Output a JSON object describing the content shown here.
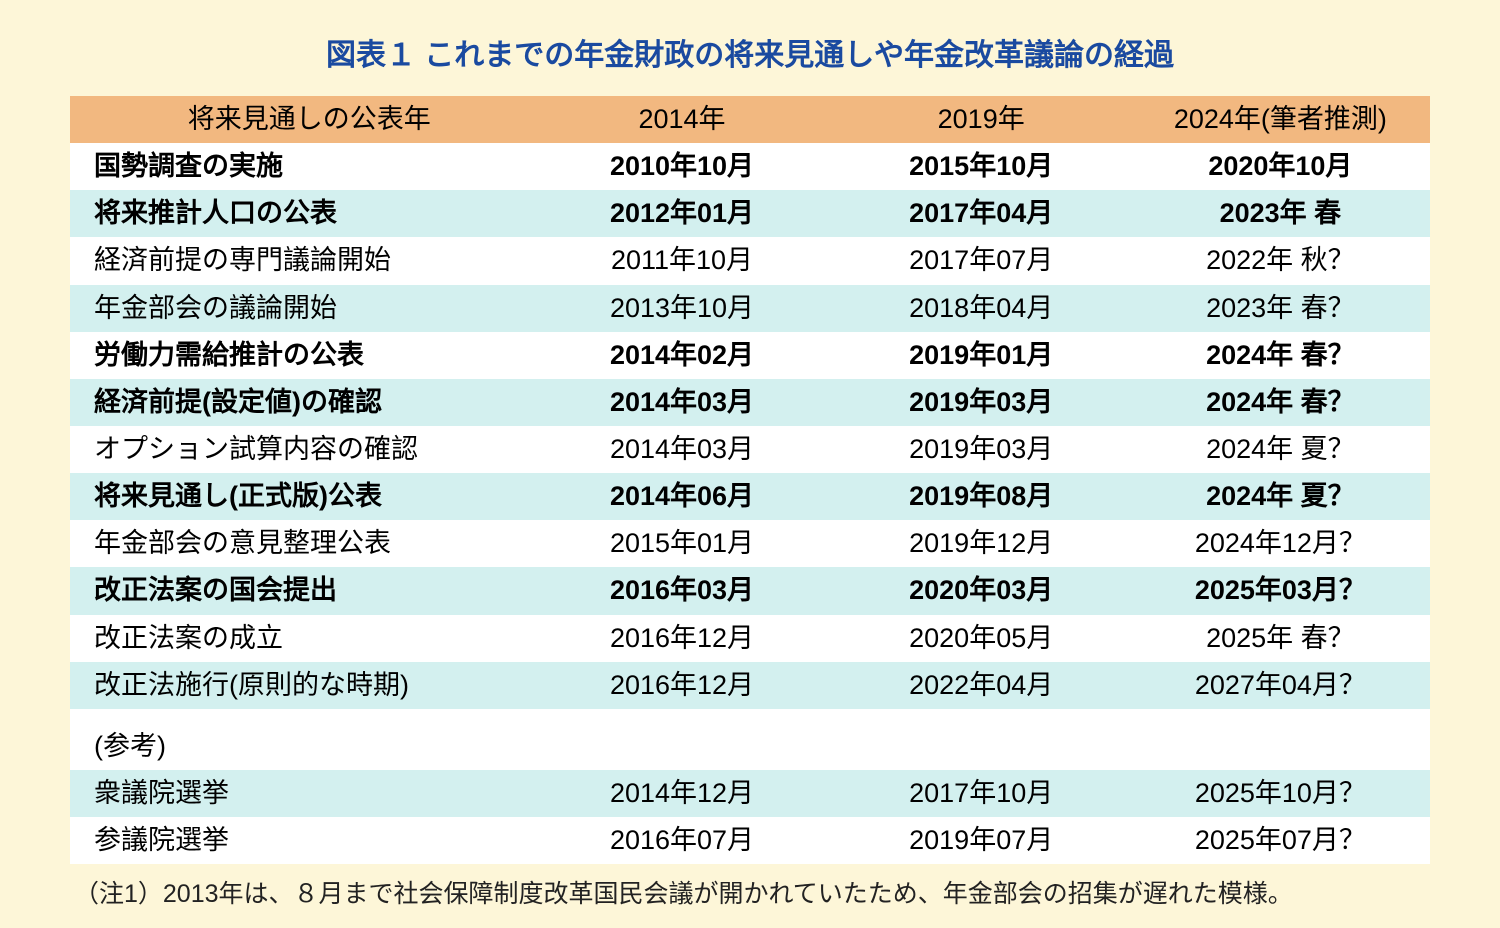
{
  "title": "図表１  これまでの年金財政の将来見通しや年金改革議論の経過",
  "colors": {
    "frameBg": "#fdf6d8",
    "titleColor": "#1a4aa0",
    "headerBg": "#f2b880",
    "blueRowBg": "#d3f0ef",
    "whiteRowBg": "#ffffff",
    "text": "#000000",
    "noteText": "#222222"
  },
  "table": {
    "header": {
      "label": "将来見通しの公表年",
      "cols": [
        "2014年",
        "2019年",
        "2024年(筆者推測)"
      ]
    },
    "rows": [
      {
        "label": "国勢調査の実施",
        "bold": true,
        "bg": "white",
        "vals": [
          "2010年10月",
          "2015年10月",
          "2020年10月"
        ]
      },
      {
        "label": "将来推計人口の公表",
        "bold": true,
        "bg": "blue",
        "vals": [
          "2012年01月",
          "2017年04月",
          "2023年 春"
        ]
      },
      {
        "label": "経済前提の専門議論開始",
        "bold": false,
        "bg": "white",
        "vals": [
          "2011年10月",
          "2017年07月",
          "2022年 秋？"
        ]
      },
      {
        "label": "年金部会の議論開始",
        "bold": false,
        "bg": "blue",
        "vals": [
          "2013年10月",
          "2018年04月",
          "2023年 春？"
        ]
      },
      {
        "label": "労働力需給推計の公表",
        "bold": true,
        "bg": "white",
        "vals": [
          "2014年02月",
          "2019年01月",
          "2024年 春？"
        ]
      },
      {
        "label": "経済前提(設定値)の確認",
        "bold": true,
        "bg": "blue",
        "vals": [
          "2014年03月",
          "2019年03月",
          "2024年 春？"
        ]
      },
      {
        "label": "オプション試算内容の確認",
        "bold": false,
        "bg": "white",
        "vals": [
          "2014年03月",
          "2019年03月",
          "2024年 夏？"
        ]
      },
      {
        "label": "将来見通し(正式版)公表",
        "bold": true,
        "bg": "blue",
        "vals": [
          "2014年06月",
          "2019年08月",
          "2024年 夏？"
        ]
      },
      {
        "label": "年金部会の意見整理公表",
        "bold": false,
        "bg": "white",
        "vals": [
          "2015年01月",
          "2019年12月",
          "2024年12月？"
        ]
      },
      {
        "label": "改正法案の国会提出",
        "bold": true,
        "bg": "blue",
        "vals": [
          "2016年03月",
          "2020年03月",
          "2025年03月？"
        ]
      },
      {
        "label": "改正法案の成立",
        "bold": false,
        "bg": "white",
        "vals": [
          "2016年12月",
          "2020年05月",
          "2025年 春？"
        ]
      },
      {
        "label": "改正法施行(原則的な時期)",
        "bold": false,
        "bg": "blue",
        "vals": [
          "2016年12月",
          "2022年04月",
          "2027年04月？"
        ]
      }
    ],
    "refHeader": {
      "label": "(参考)",
      "bg": "white"
    },
    "refRows": [
      {
        "label": "衆議院選挙",
        "bold": false,
        "bg": "blue",
        "vals": [
          "2014年12月",
          "2017年10月",
          "2025年10月？"
        ]
      },
      {
        "label": "参議院選挙",
        "bold": false,
        "bg": "white",
        "vals": [
          "2016年07月",
          "2019年07月",
          "2025年07月？"
        ]
      }
    ]
  },
  "note": "（注1）2013年は、８月まで社会保障制度改革国民会議が開かれていたため、年金部会の招集が遅れた模様。"
}
